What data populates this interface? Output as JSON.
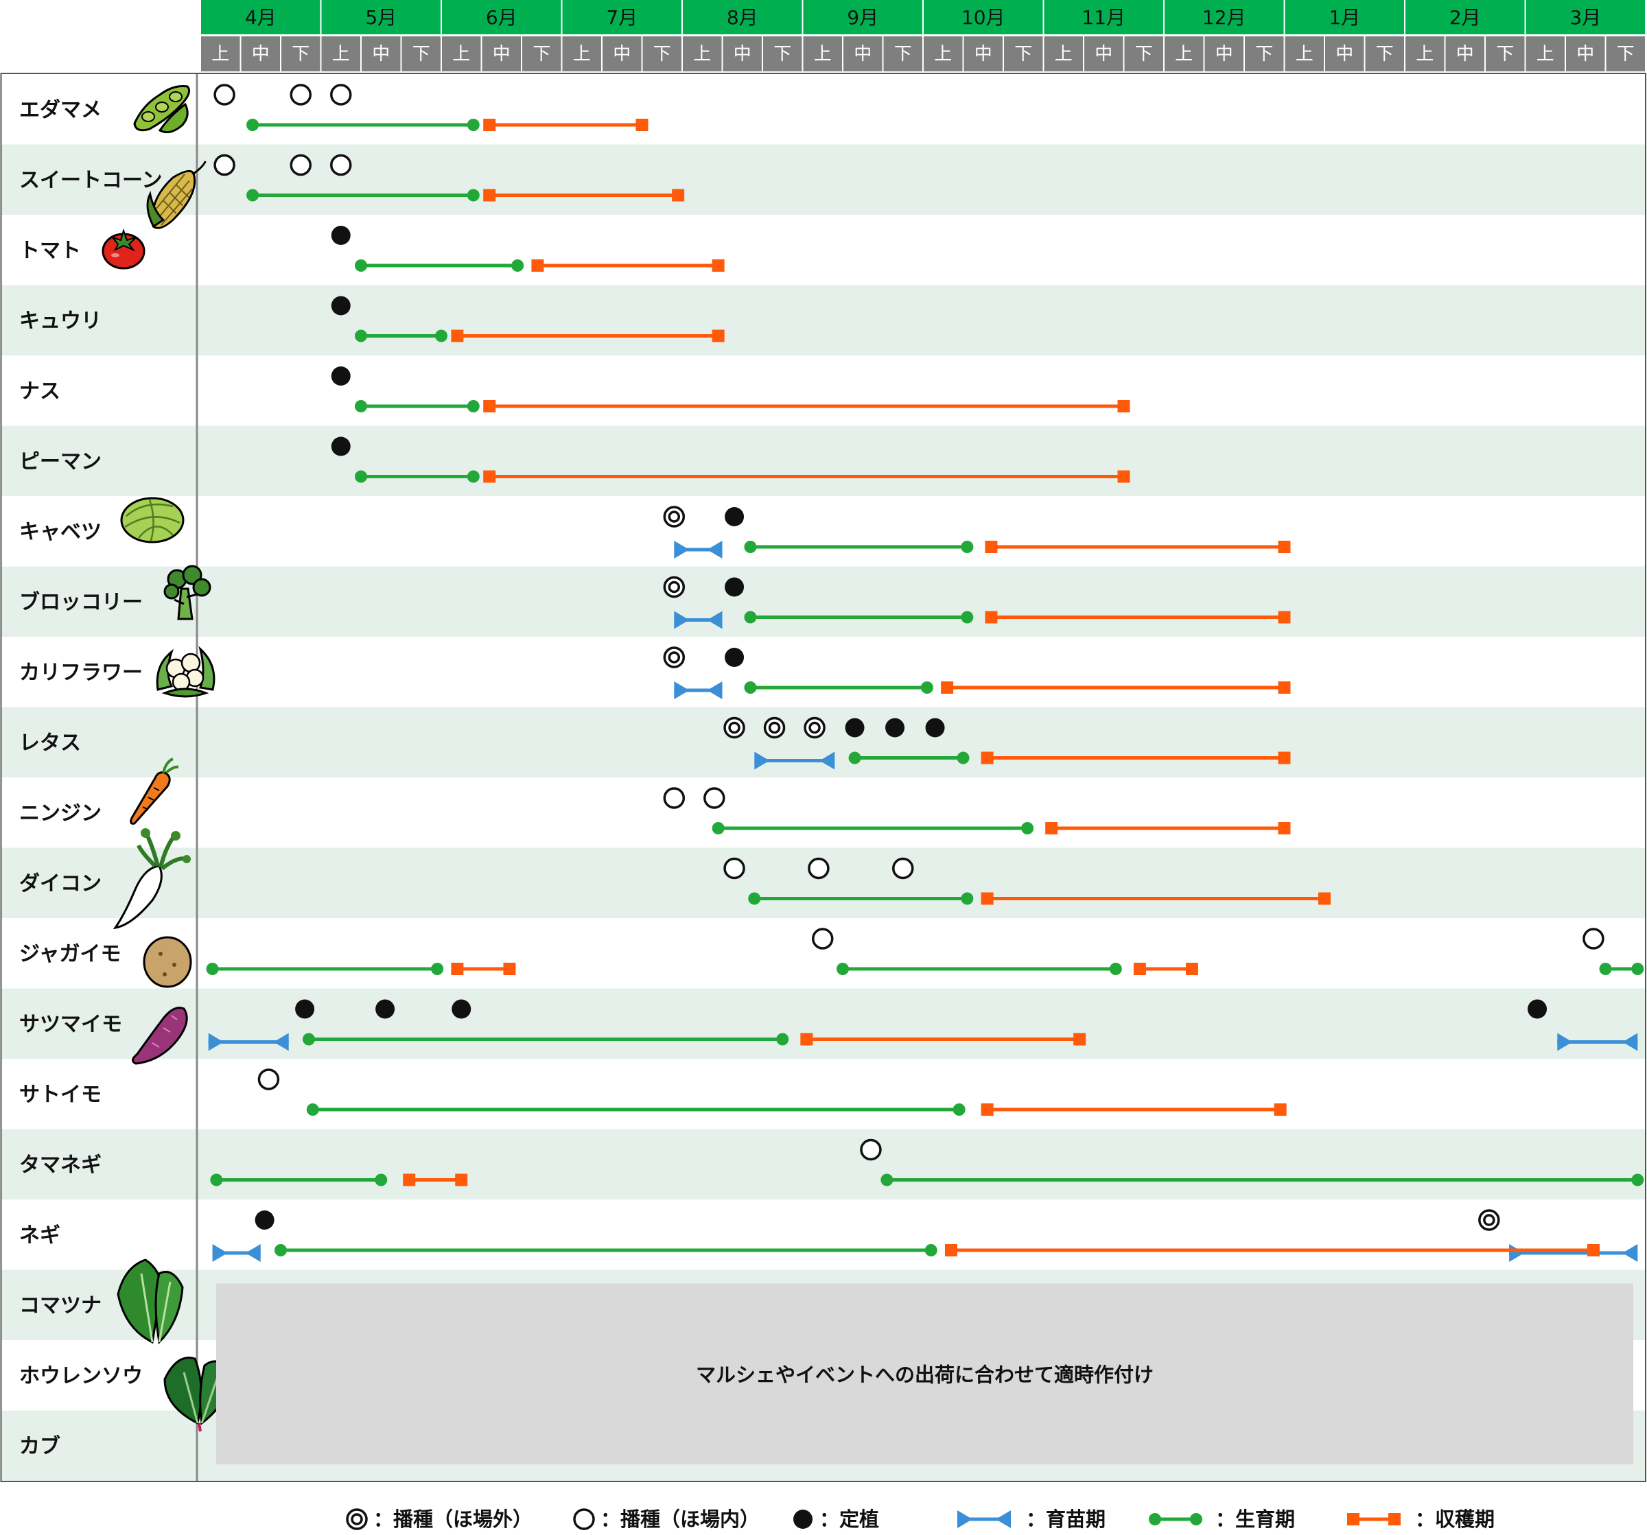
{
  "chart_data": {
    "type": "gantt",
    "months": [
      "4月",
      "5月",
      "6月",
      "7月",
      "8月",
      "9月",
      "10月",
      "11月",
      "12月",
      "1月",
      "2月",
      "3月"
    ],
    "subperiods": [
      "上",
      "中",
      "下"
    ],
    "crops": [
      {
        "name": "エダマメ",
        "icon": "edamame-icon",
        "open_seed": [
          0.6,
          2.5,
          3.5
        ],
        "growth": [
          [
            1.3,
            6.8
          ]
        ],
        "harvest": [
          [
            7.2,
            11.0
          ]
        ]
      },
      {
        "name": "スイートコーン",
        "icon": "corn-icon",
        "open_seed": [
          0.6,
          2.5,
          3.5
        ],
        "growth": [
          [
            1.3,
            6.8
          ]
        ],
        "harvest": [
          [
            7.2,
            11.9
          ]
        ]
      },
      {
        "name": "トマト",
        "icon": "tomato-icon",
        "planting": [
          3.5
        ],
        "growth": [
          [
            4.0,
            7.9
          ]
        ],
        "harvest": [
          [
            8.4,
            12.9
          ]
        ]
      },
      {
        "name": "キュウリ",
        "icon": "",
        "planting": [
          3.5
        ],
        "growth": [
          [
            4.0,
            6.0
          ]
        ],
        "harvest": [
          [
            6.4,
            12.9
          ]
        ]
      },
      {
        "name": "ナス",
        "icon": "",
        "planting": [
          3.5
        ],
        "growth": [
          [
            4.0,
            6.8
          ]
        ],
        "harvest": [
          [
            7.2,
            23.0
          ]
        ]
      },
      {
        "name": "ピーマン",
        "icon": "",
        "planting": [
          3.5
        ],
        "growth": [
          [
            4.0,
            6.8
          ]
        ],
        "harvest": [
          [
            7.2,
            23.0
          ]
        ]
      },
      {
        "name": "キャベツ",
        "icon": "cabbage-icon",
        "double_seed": [
          11.8
        ],
        "planting": [
          13.3
        ],
        "nursery": [
          [
            11.8,
            13.0
          ]
        ],
        "growth": [
          [
            13.7,
            19.1
          ]
        ],
        "harvest": [
          [
            19.7,
            27.0
          ]
        ]
      },
      {
        "name": "ブロッコリー",
        "icon": "broccoli-icon",
        "double_seed": [
          11.8
        ],
        "planting": [
          13.3
        ],
        "nursery": [
          [
            11.8,
            13.0
          ]
        ],
        "growth": [
          [
            13.7,
            19.1
          ]
        ],
        "harvest": [
          [
            19.7,
            27.0
          ]
        ]
      },
      {
        "name": "カリフラワー",
        "icon": "cauliflower-icon",
        "double_seed": [
          11.8
        ],
        "planting": [
          13.3
        ],
        "nursery": [
          [
            11.8,
            13.0
          ]
        ],
        "growth": [
          [
            13.7,
            18.1
          ]
        ],
        "harvest": [
          [
            18.6,
            27.0
          ]
        ]
      },
      {
        "name": "レタス",
        "icon": "",
        "double_seed": [
          13.3,
          14.3,
          15.3
        ],
        "planting": [
          16.3,
          17.3,
          18.3
        ],
        "nursery": [
          [
            13.8,
            15.8
          ]
        ],
        "growth": [
          [
            16.3,
            19.0
          ]
        ],
        "harvest": [
          [
            19.6,
            27.0
          ]
        ]
      },
      {
        "name": "ニンジン",
        "icon": "carrot-icon",
        "open_seed": [
          11.8,
          12.8
        ],
        "growth": [
          [
            12.9,
            20.6
          ]
        ],
        "harvest": [
          [
            21.2,
            27.0
          ]
        ]
      },
      {
        "name": "ダイコン",
        "icon": "daikon-icon",
        "open_seed": [
          13.3,
          15.4,
          17.5
        ],
        "growth": [
          [
            13.8,
            19.1
          ]
        ],
        "harvest": [
          [
            19.6,
            28.0
          ]
        ]
      },
      {
        "name": "ジャガイモ",
        "icon": "potato-icon",
        "open_seed": [
          15.5,
          34.7
        ],
        "growth": [
          [
            0.3,
            5.9
          ],
          [
            16.0,
            22.8
          ],
          [
            35.0,
            35.8
          ]
        ],
        "harvest": [
          [
            6.4,
            7.7
          ],
          [
            23.4,
            24.7
          ]
        ]
      },
      {
        "name": "サツマイモ",
        "icon": "sweet-potato-icon",
        "planting": [
          2.6,
          4.6,
          6.5,
          33.3
        ],
        "nursery": [
          [
            0.2,
            2.2
          ],
          [
            33.8,
            35.8
          ]
        ],
        "growth": [
          [
            2.7,
            14.5
          ]
        ],
        "harvest": [
          [
            15.1,
            21.9
          ]
        ]
      },
      {
        "name": "サトイモ",
        "icon": "",
        "open_seed": [
          1.7
        ],
        "growth": [
          [
            2.8,
            18.9
          ]
        ],
        "harvest": [
          [
            19.6,
            26.9
          ]
        ]
      },
      {
        "name": "タマネギ",
        "icon": "",
        "open_seed": [
          16.7
        ],
        "growth": [
          [
            0.4,
            4.5
          ],
          [
            17.1,
            35.8
          ]
        ],
        "harvest": [
          [
            5.2,
            6.5
          ]
        ]
      },
      {
        "name": "ネギ",
        "icon": "",
        "double_seed": [
          32.1
        ],
        "planting": [
          1.6
        ],
        "nursery": [
          [
            0.3,
            1.5
          ],
          [
            32.6,
            35.8
          ]
        ],
        "growth": [
          [
            2.0,
            18.2
          ]
        ],
        "harvest": [
          [
            18.7,
            34.7
          ]
        ]
      },
      {
        "name": "コマツナ",
        "icon": "komatsuna-icon"
      },
      {
        "name": "ホウレンソウ",
        "icon": "spinach-icon"
      },
      {
        "name": "カブ",
        "icon": ""
      }
    ],
    "note": "マルシェやイベントへの出荷に合わせて適時作付け",
    "legend": [
      {
        "key": "double_seed",
        "label": "：播種（ほ場外）"
      },
      {
        "key": "open_seed",
        "label": "：播種（ほ場内）"
      },
      {
        "key": "planting",
        "label": "：定植"
      },
      {
        "key": "nursery",
        "label": "：育苗期"
      },
      {
        "key": "growth",
        "label": "：生育期"
      },
      {
        "key": "harvest",
        "label": "：収穫期"
      }
    ],
    "colors": {
      "header_green": "#00b050",
      "subheader_gray": "#7f7f7f",
      "row_tint": "#e6f0ea",
      "nursery": "#3a8fd6",
      "growth": "#22a838",
      "harvest": "#ff5a0a",
      "note_bg": "#d9d9d9",
      "grid": "#9b9b9b"
    }
  }
}
